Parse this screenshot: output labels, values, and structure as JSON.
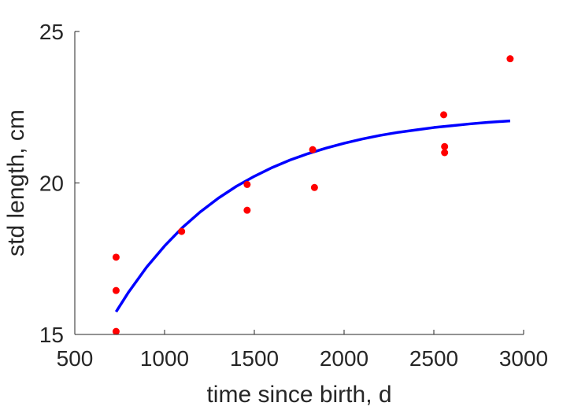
{
  "chart_data": {
    "type": "scatter",
    "title": "",
    "xlabel": "time since birth, d",
    "ylabel": "std length, cm",
    "xlim": [
      500,
      3000
    ],
    "ylim": [
      15,
      25
    ],
    "xticks": [
      500,
      1000,
      1500,
      2000,
      2500,
      3000
    ],
    "yticks": [
      15,
      20,
      25
    ],
    "xtick_labels": [
      "500",
      "1000",
      "1500",
      "2000",
      "2500",
      "3000"
    ],
    "ytick_labels": [
      "15",
      "20",
      "25"
    ],
    "grid": false,
    "legend": "none",
    "series": [
      {
        "kind": "scatter",
        "color": "#ff0000",
        "x": [
          730,
          730,
          730,
          1095,
          1460,
          1460,
          1825,
          1835,
          2555,
          2560,
          2560,
          2925
        ],
        "y": [
          17.55,
          16.45,
          15.1,
          18.4,
          19.95,
          19.1,
          21.1,
          19.85,
          22.25,
          21.2,
          21.0,
          24.1
        ]
      },
      {
        "kind": "line",
        "color": "#0000ff",
        "x": [
          730,
          800,
          900,
          1000,
          1100,
          1200,
          1300,
          1400,
          1500,
          1600,
          1700,
          1800,
          1900,
          2000,
          2100,
          2200,
          2300,
          2400,
          2500,
          2600,
          2700,
          2800,
          2925
        ],
        "y": [
          15.75,
          16.4,
          17.22,
          17.92,
          18.53,
          19.05,
          19.5,
          19.89,
          20.22,
          20.51,
          20.76,
          20.97,
          21.15,
          21.31,
          21.45,
          21.57,
          21.67,
          21.75,
          21.83,
          21.89,
          21.95,
          22.0,
          22.05
        ]
      }
    ]
  }
}
